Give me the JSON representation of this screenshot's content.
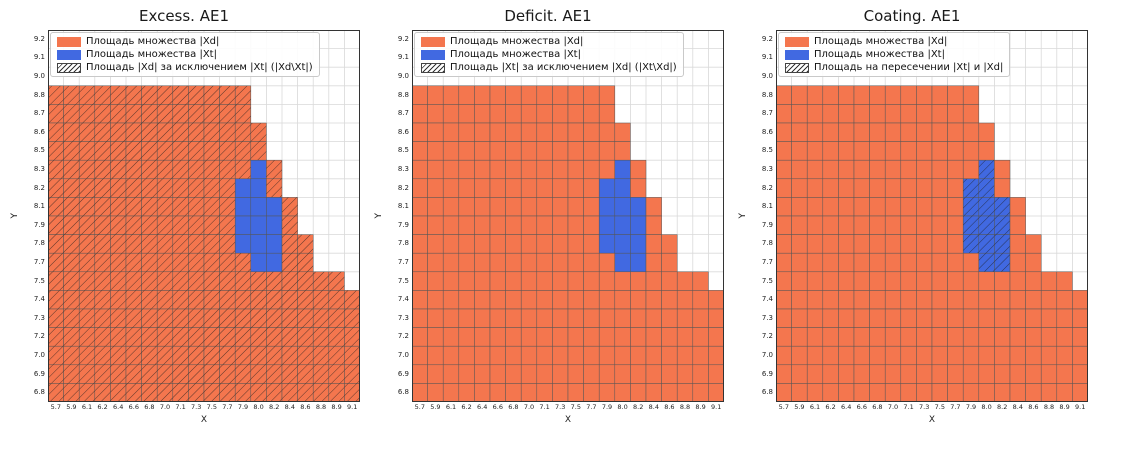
{
  "colors": {
    "orange": "#f4764e",
    "blue": "#4169e1",
    "grid": "#d9d9d9",
    "cell_edge": "#565656",
    "hatch": "#1a1a1a",
    "axes_border": "#333333"
  },
  "chart_data": [
    {
      "type": "heatmap",
      "title": "Excess. AE1",
      "xlabel": "X",
      "ylabel": "Y",
      "x_ticks": [
        "5.7",
        "5.9",
        "6.1",
        "6.2",
        "6.4",
        "6.6",
        "6.8",
        "7.0",
        "7.1",
        "7.3",
        "7.5",
        "7.7",
        "7.9",
        "8.0",
        "8.2",
        "8.4",
        "8.6",
        "8.8",
        "8.9",
        "9.1"
      ],
      "y_ticks": [
        "9.2",
        "9.1",
        "9.0",
        "8.8",
        "8.7",
        "8.6",
        "8.5",
        "8.3",
        "8.2",
        "8.1",
        "7.9",
        "7.8",
        "7.7",
        "7.5",
        "7.4",
        "7.3",
        "7.2",
        "7.0",
        "6.9",
        "6.8"
      ],
      "legend": [
        "Площадь множества |Xd|",
        "Площадь множества  |Xt|",
        "Площадь |Xd| за исключением |Xt| (|Xd\\Xt|)"
      ],
      "hatch_rule": "orange_minus_blue",
      "orange_right_edge_by_row": [
        -1,
        -1,
        -1,
        12,
        12,
        13,
        13,
        14,
        14,
        15,
        15,
        16,
        16,
        18,
        19,
        19,
        19,
        19,
        19,
        19
      ],
      "blue_cells": [
        [
          7,
          13
        ],
        [
          8,
          12
        ],
        [
          8,
          13
        ],
        [
          9,
          12
        ],
        [
          9,
          13
        ],
        [
          9,
          14
        ],
        [
          10,
          12
        ],
        [
          10,
          13
        ],
        [
          10,
          14
        ],
        [
          11,
          12
        ],
        [
          11,
          13
        ],
        [
          11,
          14
        ],
        [
          12,
          13
        ],
        [
          12,
          14
        ]
      ]
    },
    {
      "type": "heatmap",
      "title": "Deficit. AE1",
      "xlabel": "X",
      "ylabel": "Y",
      "x_ticks": [
        "5.7",
        "5.9",
        "6.1",
        "6.2",
        "6.4",
        "6.6",
        "6.8",
        "7.0",
        "7.1",
        "7.3",
        "7.5",
        "7.7",
        "7.9",
        "8.0",
        "8.2",
        "8.4",
        "8.6",
        "8.8",
        "8.9",
        "9.1"
      ],
      "y_ticks": [
        "9.2",
        "9.1",
        "9.0",
        "8.8",
        "8.7",
        "8.6",
        "8.5",
        "8.3",
        "8.2",
        "8.1",
        "7.9",
        "7.8",
        "7.7",
        "7.5",
        "7.4",
        "7.3",
        "7.2",
        "7.0",
        "6.9",
        "6.8"
      ],
      "legend": [
        "Площадь множества |Xd|",
        "Площадь множества  |Xt|",
        "Площадь |Xt| за исключением |Xd| (|Xt\\Xd|)"
      ],
      "hatch_rule": "blue_minus_orange",
      "orange_right_edge_by_row": [
        -1,
        -1,
        -1,
        12,
        12,
        13,
        13,
        14,
        14,
        15,
        15,
        16,
        16,
        18,
        19,
        19,
        19,
        19,
        19,
        19
      ],
      "blue_cells": [
        [
          7,
          13
        ],
        [
          8,
          12
        ],
        [
          8,
          13
        ],
        [
          9,
          12
        ],
        [
          9,
          13
        ],
        [
          9,
          14
        ],
        [
          10,
          12
        ],
        [
          10,
          13
        ],
        [
          10,
          14
        ],
        [
          11,
          12
        ],
        [
          11,
          13
        ],
        [
          11,
          14
        ],
        [
          12,
          13
        ],
        [
          12,
          14
        ]
      ]
    },
    {
      "type": "heatmap",
      "title": "Coating. AE1",
      "xlabel": "X",
      "ylabel": "Y",
      "x_ticks": [
        "5.7",
        "5.9",
        "6.1",
        "6.2",
        "6.4",
        "6.6",
        "6.8",
        "7.0",
        "7.1",
        "7.3",
        "7.5",
        "7.7",
        "7.9",
        "8.0",
        "8.2",
        "8.4",
        "8.6",
        "8.8",
        "8.9",
        "9.1"
      ],
      "y_ticks": [
        "9.2",
        "9.1",
        "9.0",
        "8.8",
        "8.7",
        "8.6",
        "8.5",
        "8.3",
        "8.2",
        "8.1",
        "7.9",
        "7.8",
        "7.7",
        "7.5",
        "7.4",
        "7.3",
        "7.2",
        "7.0",
        "6.9",
        "6.8"
      ],
      "legend": [
        "Площадь множества |Xd|",
        "Площадь множества  |Xt|",
        "Площадь на пересечении |Xt| и |Xd|"
      ],
      "hatch_rule": "blue_and_orange",
      "orange_right_edge_by_row": [
        -1,
        -1,
        -1,
        12,
        12,
        13,
        13,
        14,
        14,
        15,
        15,
        16,
        16,
        18,
        19,
        19,
        19,
        19,
        19,
        19
      ],
      "blue_cells": [
        [
          7,
          13
        ],
        [
          8,
          12
        ],
        [
          8,
          13
        ],
        [
          9,
          12
        ],
        [
          9,
          13
        ],
        [
          9,
          14
        ],
        [
          10,
          12
        ],
        [
          10,
          13
        ],
        [
          10,
          14
        ],
        [
          11,
          12
        ],
        [
          11,
          13
        ],
        [
          11,
          14
        ],
        [
          12,
          13
        ],
        [
          12,
          14
        ]
      ]
    }
  ]
}
